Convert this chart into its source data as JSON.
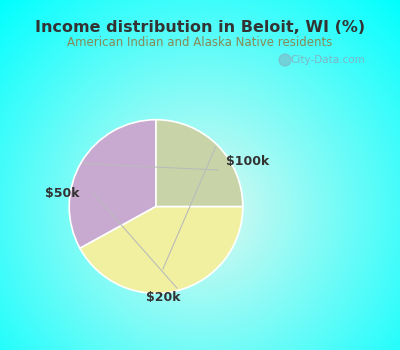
{
  "title": "Income distribution in Beloit, WI (%)",
  "subtitle": "American Indian and Alaska Native residents",
  "title_color": "#333333",
  "subtitle_color": "#888855",
  "background_color": "#00ffff",
  "slices": [
    {
      "label": "$100k",
      "value": 33,
      "color": "#c8aad0"
    },
    {
      "label": "$50k",
      "value": 42,
      "color": "#f0f0a0"
    },
    {
      "label": "$20k",
      "value": 25,
      "color": "#c8d4a8"
    }
  ],
  "startangle": 90,
  "watermark": "City-Data.com",
  "watermark_color": "#88aabc"
}
